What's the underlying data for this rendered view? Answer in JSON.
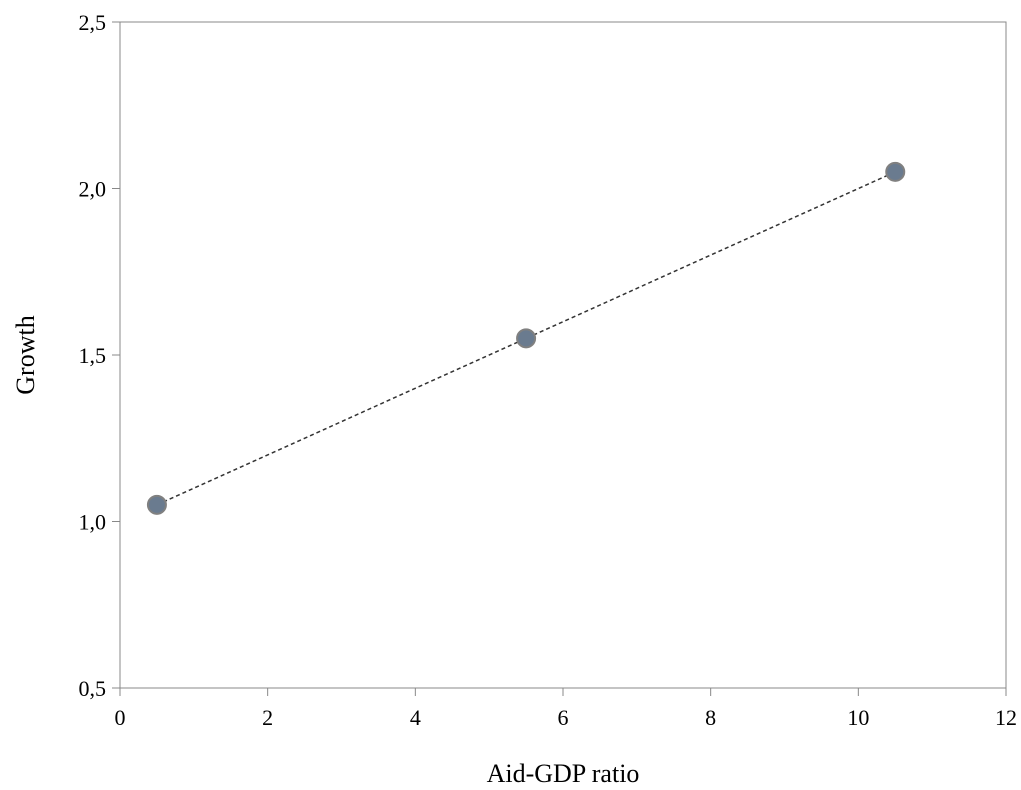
{
  "chart_data": {
    "type": "scatter",
    "title": "",
    "xlabel": "Aid-GDP ratio",
    "ylabel": "Growth",
    "xlim": [
      0,
      12
    ],
    "ylim": [
      0.5,
      2.5
    ],
    "xticks": [
      0,
      2,
      4,
      6,
      8,
      10,
      12
    ],
    "yticks": [
      0.5,
      1.0,
      1.5,
      2.0,
      2.5
    ],
    "xtick_labels": [
      "0",
      "2",
      "4",
      "6",
      "8",
      "10",
      "12"
    ],
    "ytick_labels": [
      "0,5",
      "1,0",
      "1,5",
      "2,0",
      "2,5"
    ],
    "grid": false,
    "legend": "none",
    "series": [
      {
        "x": [
          0.5,
          5.5,
          10.5
        ],
        "y": [
          1.05,
          1.55,
          2.05
        ],
        "color": "#6a7b8f",
        "marker_edge": "#808080",
        "trendline": {
          "style": "dotted",
          "color": "#333333"
        }
      }
    ]
  }
}
